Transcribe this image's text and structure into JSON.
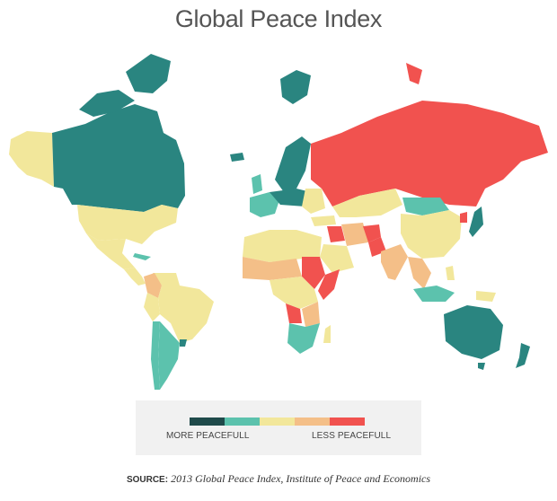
{
  "title": "Global Peace Index",
  "legend": {
    "more_label": "MORE PEACEFULL",
    "less_label": "LESS PEACEFULL",
    "scale_colors": [
      "#1f4a4a",
      "#5cc2ad",
      "#f2e79b",
      "#f4bf88",
      "#f1524f"
    ]
  },
  "source": {
    "label": "SOURCE:",
    "text": "2013 Global Peace Index, Institute of Peace and Economics"
  },
  "map": {
    "regions": [
      {
        "name": "Canada",
        "level": 1
      },
      {
        "name": "Greenland",
        "level": 1
      },
      {
        "name": "Alaska",
        "level": 3
      },
      {
        "name": "United States",
        "level": 3
      },
      {
        "name": "Mexico",
        "level": 3
      },
      {
        "name": "Central America",
        "level": 3
      },
      {
        "name": "Colombia",
        "level": 4
      },
      {
        "name": "Venezuela",
        "level": 3
      },
      {
        "name": "Brazil",
        "level": 3
      },
      {
        "name": "Argentina",
        "level": 2
      },
      {
        "name": "Chile",
        "level": 2
      },
      {
        "name": "Uruguay",
        "level": 1
      },
      {
        "name": "Iceland",
        "level": 1
      },
      {
        "name": "Scandinavia",
        "level": 1
      },
      {
        "name": "Western Europe",
        "level": 2
      },
      {
        "name": "Central Europe",
        "level": 1
      },
      {
        "name": "Russia",
        "level": 5
      },
      {
        "name": "Kazakhstan",
        "level": 3
      },
      {
        "name": "Mongolia",
        "level": 2
      },
      {
        "name": "China",
        "level": 3
      },
      {
        "name": "North Korea",
        "level": 5
      },
      {
        "name": "Japan",
        "level": 2
      },
      {
        "name": "India",
        "level": 4
      },
      {
        "name": "Pakistan",
        "level": 5
      },
      {
        "name": "Afghanistan",
        "level": 5
      },
      {
        "name": "Iraq",
        "level": 5
      },
      {
        "name": "Iran",
        "level": 4
      },
      {
        "name": "Saudi Arabia",
        "level": 3
      },
      {
        "name": "Southeast Asia",
        "level": 3
      },
      {
        "name": "Indonesia",
        "level": 2
      },
      {
        "name": "Australia",
        "level": 1
      },
      {
        "name": "New Zealand",
        "level": 1
      },
      {
        "name": "North Africa",
        "level": 3
      },
      {
        "name": "Sahel",
        "level": 4
      },
      {
        "name": "Sudan",
        "level": 5
      },
      {
        "name": "Somalia",
        "level": 5
      },
      {
        "name": "Central Africa",
        "level": 3
      },
      {
        "name": "DR Congo",
        "level": 5
      },
      {
        "name": "Southern Africa",
        "level": 2
      }
    ]
  }
}
